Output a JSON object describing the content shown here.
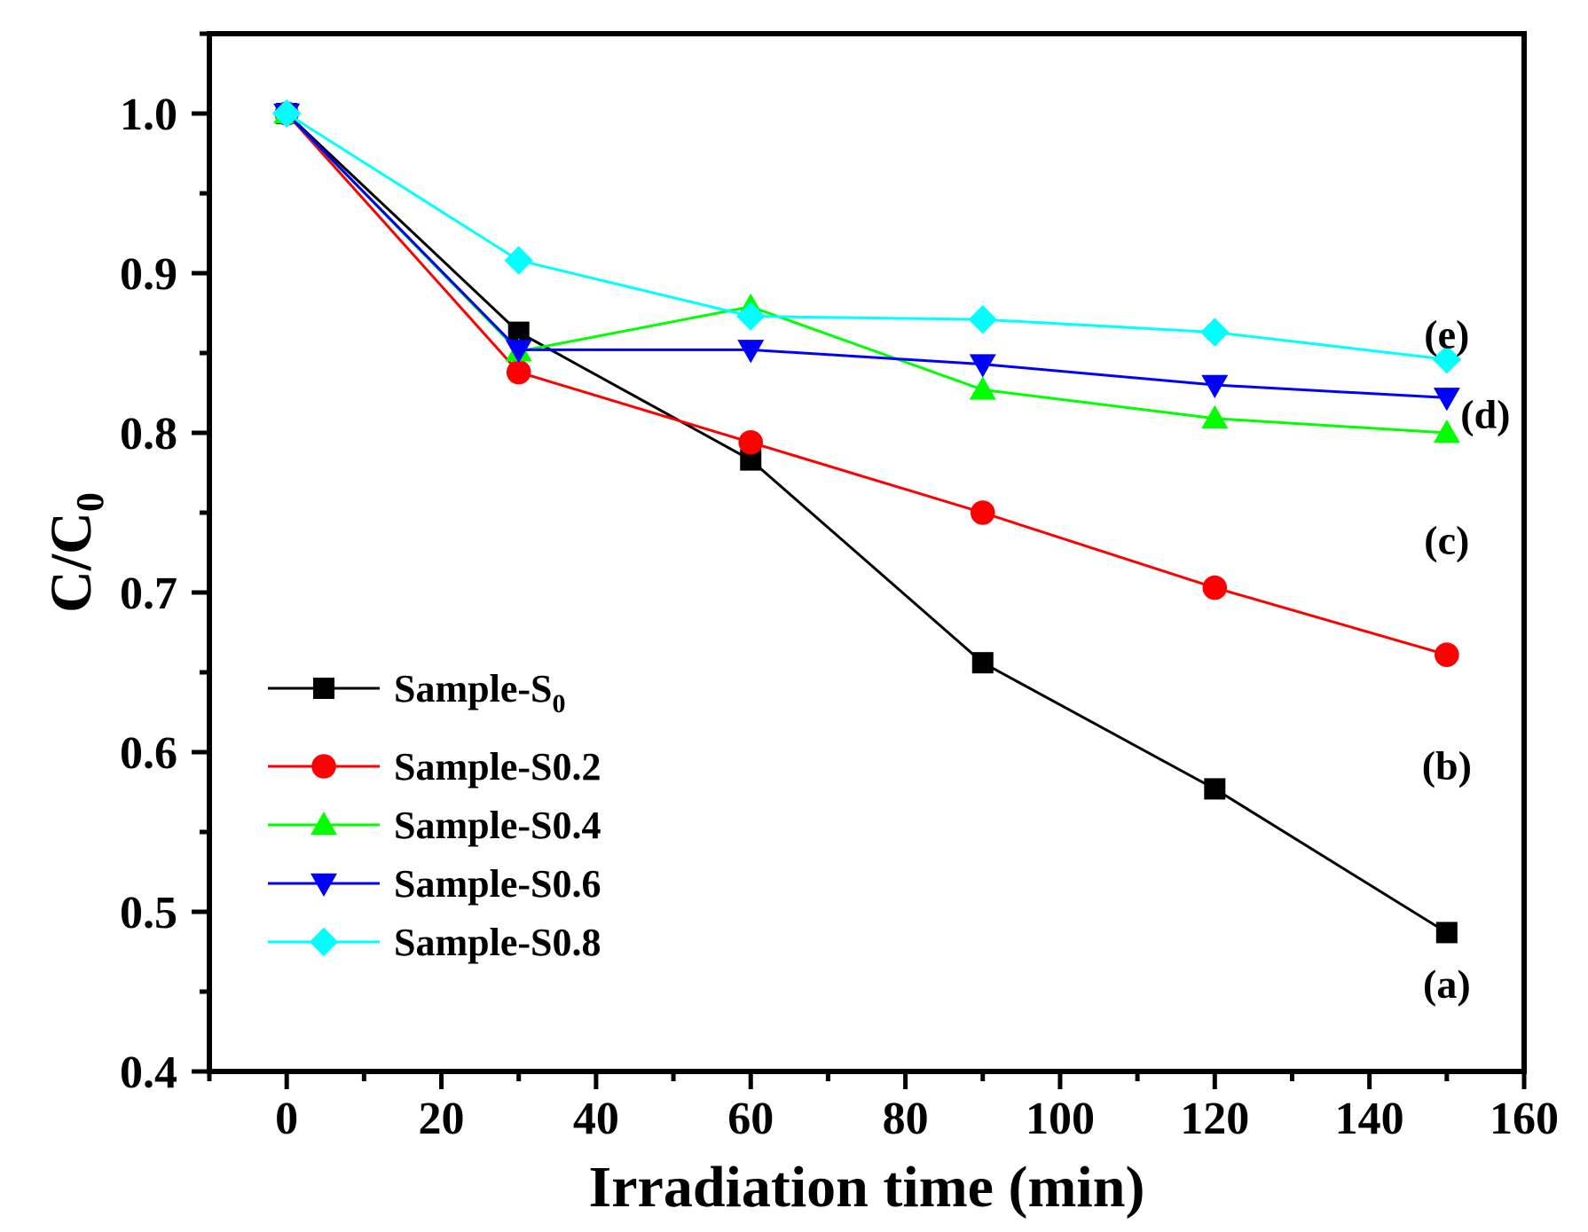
{
  "chart_data": {
    "type": "line",
    "title": "",
    "xlabel": "Irradiation time (min)",
    "ylabel_main": "C/C",
    "ylabel_sub": "0",
    "xlim": [
      -10,
      160
    ],
    "ylim": [
      0.4,
      1.05
    ],
    "xticks": [
      0,
      20,
      40,
      60,
      80,
      100,
      120,
      140,
      160
    ],
    "xtick_labels": [
      "0",
      "20",
      "40",
      "60",
      "80",
      "100",
      "120",
      "140",
      "160"
    ],
    "yticks": [
      0.4,
      0.5,
      0.6,
      0.7,
      0.8,
      0.9,
      1.0
    ],
    "ytick_labels": [
      "0.4",
      "0.5",
      "0.6",
      "0.7",
      "0.8",
      "0.9",
      "1.0"
    ],
    "grid": false,
    "legend_position": "bottom-left",
    "x": [
      0,
      30,
      60,
      90,
      120,
      150
    ],
    "series": [
      {
        "name": "Sample-S",
        "name_sub": "0",
        "color": "#000000",
        "marker": "square",
        "values": [
          1.0,
          0.863,
          0.783,
          0.656,
          0.577,
          0.487
        ]
      },
      {
        "name": "Sample-S0.2",
        "name_sub": "",
        "color": "#ff0000",
        "marker": "circle",
        "values": [
          1.0,
          0.838,
          0.794,
          0.75,
          0.703,
          0.661
        ]
      },
      {
        "name": "Sample-S0.4",
        "name_sub": "",
        "color": "#00ff00",
        "marker": "triangle-up",
        "values": [
          1.0,
          0.851,
          0.879,
          0.827,
          0.809,
          0.8
        ]
      },
      {
        "name": "Sample-S0.6",
        "name_sub": "",
        "color": "#0000ff",
        "marker": "triangle-down",
        "values": [
          1.0,
          0.852,
          0.852,
          0.843,
          0.83,
          0.822
        ]
      },
      {
        "name": "Sample-S0.8",
        "name_sub": "",
        "color": "#00ffff",
        "marker": "diamond",
        "values": [
          1.0,
          0.908,
          0.873,
          0.871,
          0.863,
          0.846
        ]
      }
    ],
    "annotations": [
      {
        "text": "(a)",
        "x": 150,
        "y": 0.455
      },
      {
        "text": "(b)",
        "x": 150,
        "y": 0.592
      },
      {
        "text": "(c)",
        "x": 150,
        "y": 0.733
      },
      {
        "text": "(d)",
        "x": 155,
        "y": 0.812
      },
      {
        "text": "(e)",
        "x": 150,
        "y": 0.862
      }
    ]
  }
}
